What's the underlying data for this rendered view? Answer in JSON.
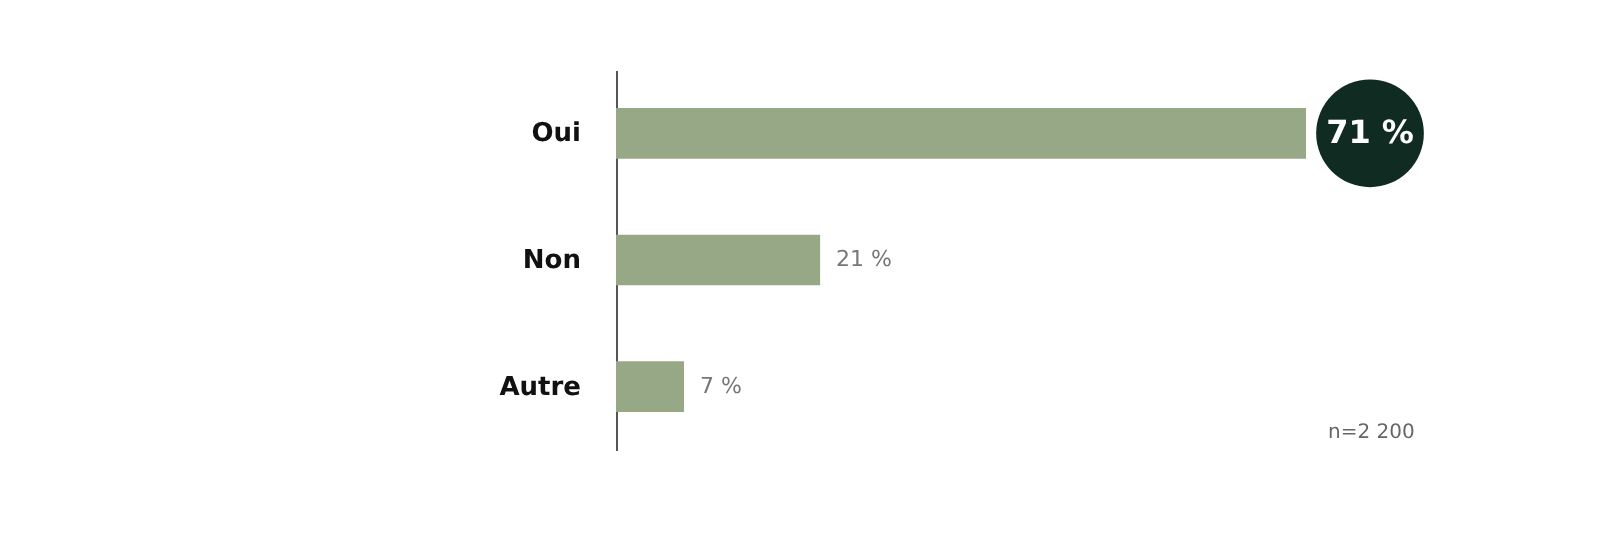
{
  "chart_data": {
    "type": "bar",
    "orientation": "horizontal",
    "categories": [
      "Oui",
      "Non",
      "Autre"
    ],
    "values": [
      71,
      21,
      7
    ],
    "value_labels": [
      "71 %",
      "21 %",
      "7 %"
    ],
    "color": "#97a886",
    "annotations": [
      "n=2 200"
    ]
  }
}
